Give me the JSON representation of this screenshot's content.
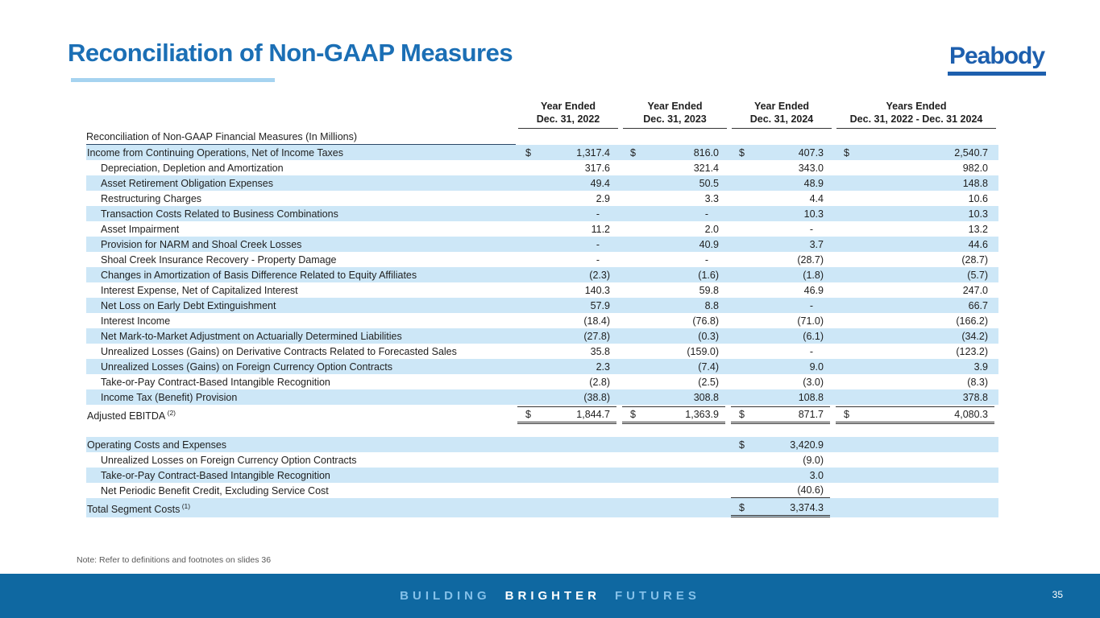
{
  "slide": {
    "title": "Reconciliation of Non-GAAP Measures",
    "logo": "Peabody",
    "note": "Note: Refer to definitions and footnotes on slides 36",
    "footer": {
      "word1": "BUILDING",
      "word2": "BRIGHTER",
      "word3": "FUTURES",
      "page": "35"
    },
    "colors": {
      "title_blue": "#1b6fb5",
      "logo_blue": "#1d5fae",
      "accent_light_blue": "#a6d3f0",
      "row_highlight": "#cde7f7",
      "footer_bar_blue": "#0f68a1",
      "footer_light_blue": "#85c1e9",
      "footer_white": "#ffffff"
    }
  },
  "table": {
    "section_label": "Reconciliation of Non-GAAP Financial Measures (In Millions)",
    "headers": [
      {
        "l1": "Year Ended",
        "l2": "Dec. 31, 2022"
      },
      {
        "l1": "Year Ended",
        "l2": "Dec. 31, 2023"
      },
      {
        "l1": "Year Ended",
        "l2": "Dec. 31, 2024"
      },
      {
        "l1": "Years Ended",
        "l2": "Dec. 31, 2022 - Dec. 31 2024"
      }
    ],
    "rows": [
      {
        "label": "Income from Continuing Operations, Net of Income Taxes",
        "hl": true,
        "cells": [
          {
            "cur": "$",
            "num": "1,317.4"
          },
          {
            "cur": "$",
            "num": "816.0"
          },
          {
            "cur": "$",
            "num": "407.3"
          },
          {
            "cur": "$",
            "num": "2,540.7"
          }
        ]
      },
      {
        "label": "Depreciation, Depletion and Amortization",
        "indent": true,
        "cells": [
          {
            "num": "317.6"
          },
          {
            "num": "321.4"
          },
          {
            "num": "343.0"
          },
          {
            "num": "982.0"
          }
        ]
      },
      {
        "label": "Asset Retirement Obligation Expenses",
        "indent": true,
        "hl": true,
        "cells": [
          {
            "num": "49.4"
          },
          {
            "num": "50.5"
          },
          {
            "num": "48.9"
          },
          {
            "num": "148.8"
          }
        ]
      },
      {
        "label": "Restructuring Charges",
        "indent": true,
        "cells": [
          {
            "num": "2.9"
          },
          {
            "num": "3.3"
          },
          {
            "num": "4.4"
          },
          {
            "num": "10.6"
          }
        ]
      },
      {
        "label": "Transaction Costs Related to Business Combinations",
        "indent": true,
        "hl": true,
        "cells": [
          {
            "num": "-"
          },
          {
            "num": "-"
          },
          {
            "num": "10.3"
          },
          {
            "num": "10.3"
          }
        ]
      },
      {
        "label": "Asset Impairment",
        "indent": true,
        "cells": [
          {
            "num": "11.2"
          },
          {
            "num": "2.0"
          },
          {
            "num": "-"
          },
          {
            "num": "13.2"
          }
        ]
      },
      {
        "label": "Provision for NARM and Shoal Creek Losses",
        "indent": true,
        "hl": true,
        "cells": [
          {
            "num": "-"
          },
          {
            "num": "40.9"
          },
          {
            "num": "3.7"
          },
          {
            "num": "44.6"
          }
        ]
      },
      {
        "label": "Shoal Creek Insurance Recovery - Property Damage",
        "indent": true,
        "cells": [
          {
            "num": "-"
          },
          {
            "num": "-"
          },
          {
            "num": "(28.7)"
          },
          {
            "num": "(28.7)"
          }
        ]
      },
      {
        "label": "Changes in Amortization of Basis Difference Related to Equity Affiliates",
        "indent": true,
        "hl": true,
        "cells": [
          {
            "num": "(2.3)"
          },
          {
            "num": "(1.6)"
          },
          {
            "num": "(1.8)"
          },
          {
            "num": "(5.7)"
          }
        ]
      },
      {
        "label": "Interest Expense, Net of Capitalized Interest",
        "indent": true,
        "cells": [
          {
            "num": "140.3"
          },
          {
            "num": "59.8"
          },
          {
            "num": "46.9"
          },
          {
            "num": "247.0"
          }
        ]
      },
      {
        "label": "Net Loss on Early Debt Extinguishment",
        "indent": true,
        "hl": true,
        "cells": [
          {
            "num": "57.9"
          },
          {
            "num": "8.8"
          },
          {
            "num": "-"
          },
          {
            "num": "66.7"
          }
        ]
      },
      {
        "label": "Interest Income",
        "indent": true,
        "cells": [
          {
            "num": "(18.4)"
          },
          {
            "num": "(76.8)"
          },
          {
            "num": "(71.0)"
          },
          {
            "num": "(166.2)"
          }
        ]
      },
      {
        "label": "Net Mark-to-Market Adjustment on Actuarially Determined Liabilities",
        "indent": true,
        "hl": true,
        "cells": [
          {
            "num": "(27.8)"
          },
          {
            "num": "(0.3)"
          },
          {
            "num": "(6.1)"
          },
          {
            "num": "(34.2)"
          }
        ]
      },
      {
        "label": "Unrealized Losses (Gains) on Derivative Contracts Related to Forecasted Sales",
        "indent": true,
        "cells": [
          {
            "num": "35.8"
          },
          {
            "num": "(159.0)"
          },
          {
            "num": "-"
          },
          {
            "num": "(123.2)"
          }
        ]
      },
      {
        "label": "Unrealized Losses (Gains) on Foreign Currency Option Contracts",
        "indent": true,
        "hl": true,
        "cells": [
          {
            "num": "2.3"
          },
          {
            "num": "(7.4)"
          },
          {
            "num": "9.0"
          },
          {
            "num": "3.9"
          }
        ]
      },
      {
        "label": "Take-or-Pay Contract-Based Intangible Recognition",
        "indent": true,
        "cells": [
          {
            "num": "(2.8)"
          },
          {
            "num": "(2.5)"
          },
          {
            "num": "(3.0)"
          },
          {
            "num": "(8.3)"
          }
        ]
      },
      {
        "label": "Income Tax (Benefit) Provision",
        "indent": true,
        "hl": true,
        "cells": [
          {
            "num": "(38.8)"
          },
          {
            "num": "308.8"
          },
          {
            "num": "108.8"
          },
          {
            "num": "378.8"
          }
        ]
      },
      {
        "label": "Adjusted EBITDA",
        "sup": "(2)",
        "tall": true,
        "top": true,
        "dbl": true,
        "cells": [
          {
            "cur": "$",
            "num": "1,844.7"
          },
          {
            "cur": "$",
            "num": "1,363.9"
          },
          {
            "cur": "$",
            "num": "871.7"
          },
          {
            "cur": "$",
            "num": "4,080.3"
          }
        ]
      }
    ],
    "rows2": [
      {
        "label": "Operating Costs and Expenses",
        "hl": true,
        "cells": [
          null,
          null,
          {
            "cur": "$",
            "num": "3,420.9"
          },
          null
        ]
      },
      {
        "label": "Unrealized Losses on Foreign Currency Option Contracts",
        "indent": true,
        "cells": [
          null,
          null,
          {
            "num": "(9.0)"
          },
          null
        ]
      },
      {
        "label": "Take-or-Pay Contract-Based Intangible Recognition",
        "indent": true,
        "hl": true,
        "cells": [
          null,
          null,
          {
            "num": "3.0"
          },
          null
        ]
      },
      {
        "label": "Net Periodic Benefit Credit, Excluding Service Cost",
        "indent": true,
        "bottom": true,
        "cells": [
          null,
          null,
          {
            "num": "(40.6)"
          },
          null
        ]
      },
      {
        "label": "Total Segment Costs",
        "sup": "(1)",
        "hl": true,
        "tall": true,
        "dbl": true,
        "cells": [
          null,
          null,
          {
            "cur": "$",
            "num": "3,374.3"
          },
          null
        ]
      }
    ]
  }
}
